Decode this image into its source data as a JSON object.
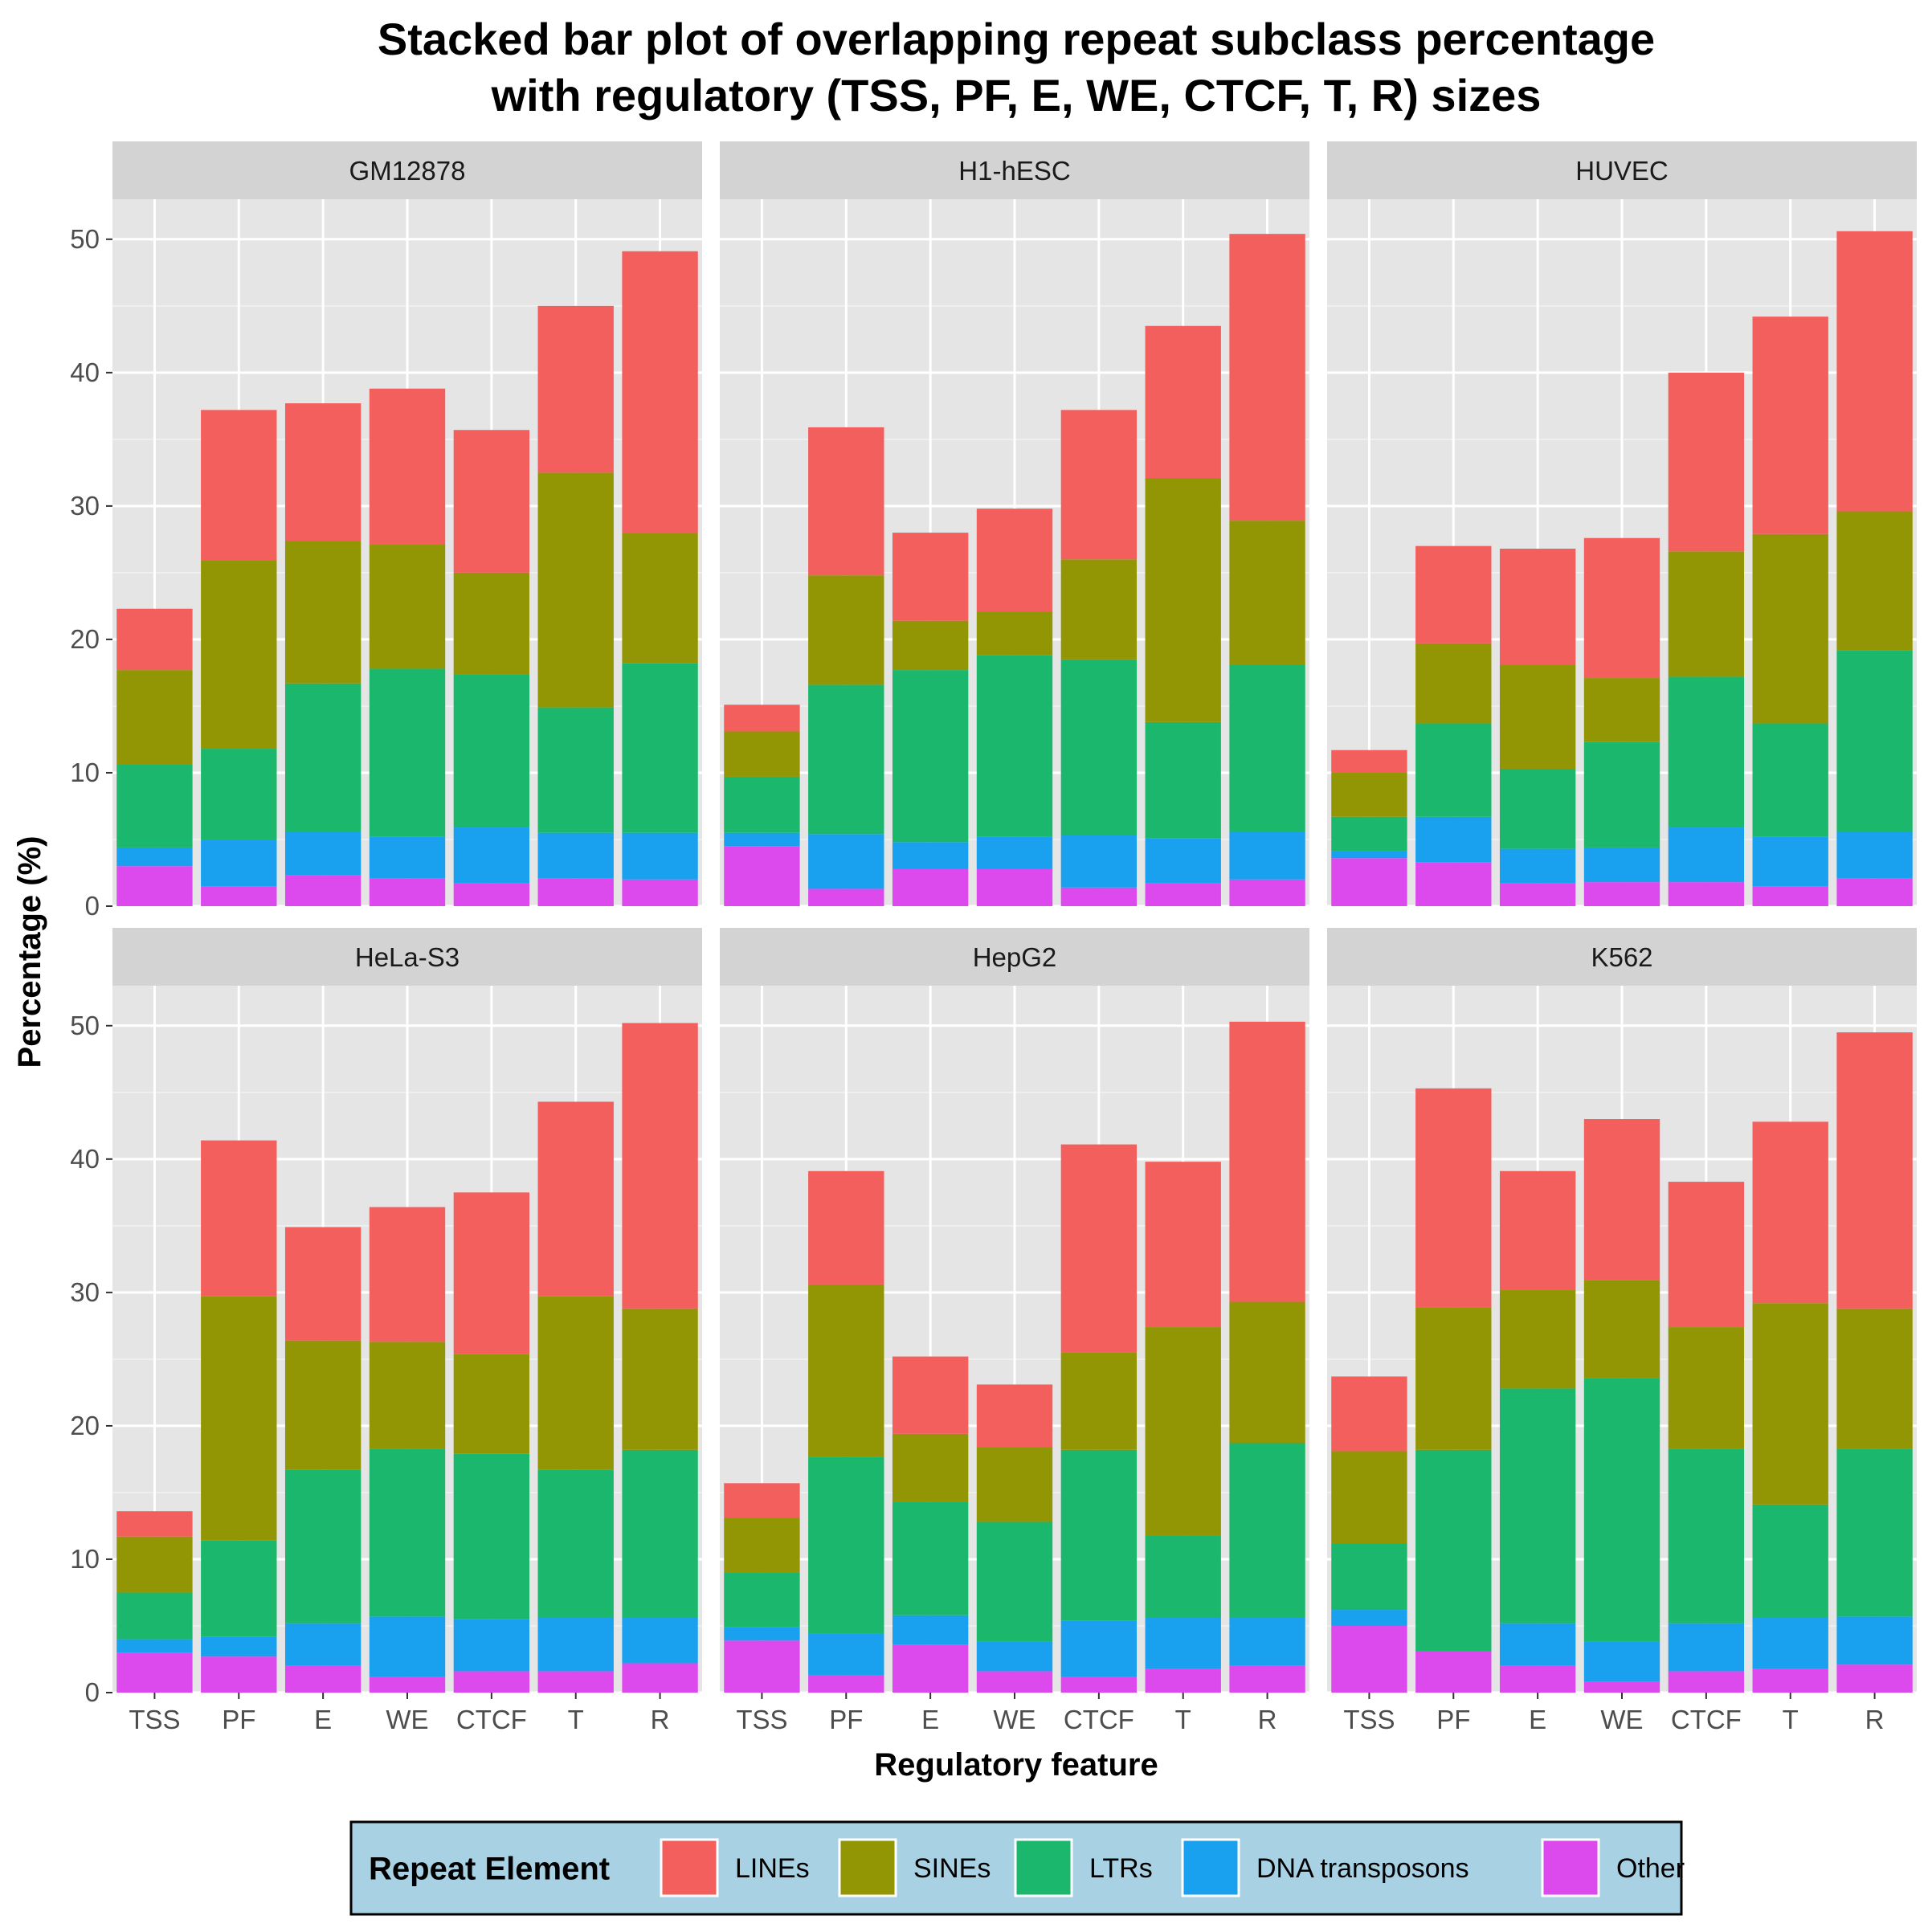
{
  "chart_data": {
    "type": "bar",
    "stacked": true,
    "title_lines": [
      "Stacked bar plot of overlapping repeat subclass percentage",
      "with regulatory (TSS, PF, E, WE, CTCF, T, R) sizes"
    ],
    "xlabel": "Regulatory feature",
    "ylabel": "Percentage (%)",
    "ylim": [
      0,
      53
    ],
    "yticks": [
      0,
      10,
      20,
      30,
      40,
      50
    ],
    "categories": [
      "TSS",
      "PF",
      "E",
      "WE",
      "CTCF",
      "T",
      "R"
    ],
    "stack_order": [
      "Other",
      "DNA transposons",
      "LTRs",
      "SINEs",
      "LINEs"
    ],
    "legend": {
      "title": "Repeat Element",
      "position": "bottom",
      "background": "#a9d1e4",
      "entries": [
        "LINEs",
        "SINEs",
        "LTRs",
        "DNA transposons",
        "Other"
      ]
    },
    "colors": {
      "LINEs": "#F25F5C",
      "SINEs": "#929605",
      "LTRs": "#1BB76C",
      "DNA transposons": "#19A1F0",
      "Other": "#DC4AEE"
    },
    "grid": true,
    "panel_background": "#E5E5E5",
    "strip_background": "#D3D3D3",
    "facets": [
      {
        "name": "GM12878",
        "series": [
          {
            "name": "Other",
            "values": [
              3.0,
              1.5,
              2.3,
              2.1,
              1.7,
              2.1,
              2.0
            ]
          },
          {
            "name": "DNA transposons",
            "values": [
              1.4,
              3.5,
              3.3,
              3.1,
              4.2,
              3.4,
              3.5
            ]
          },
          {
            "name": "LTRs",
            "values": [
              6.2,
              6.8,
              11.1,
              12.6,
              11.5,
              9.4,
              12.7
            ]
          },
          {
            "name": "SINEs",
            "values": [
              7.1,
              14.1,
              10.7,
              9.3,
              7.6,
              17.6,
              9.8
            ]
          },
          {
            "name": "LINEs",
            "values": [
              4.6,
              11.3,
              10.3,
              11.7,
              10.7,
              12.5,
              21.1
            ]
          }
        ]
      },
      {
        "name": "H1-hESC",
        "series": [
          {
            "name": "Other",
            "values": [
              4.5,
              1.3,
              2.8,
              2.8,
              1.4,
              1.7,
              2.0
            ]
          },
          {
            "name": "DNA transposons",
            "values": [
              1.0,
              4.1,
              2.0,
              2.4,
              3.9,
              3.4,
              3.6
            ]
          },
          {
            "name": "LTRs",
            "values": [
              4.2,
              11.2,
              12.9,
              13.6,
              13.2,
              8.7,
              12.5
            ]
          },
          {
            "name": "SINEs",
            "values": [
              3.4,
              8.2,
              3.7,
              3.3,
              7.5,
              18.3,
              10.8
            ]
          },
          {
            "name": "LINEs",
            "values": [
              2.0,
              11.1,
              6.6,
              7.7,
              11.2,
              11.4,
              21.5
            ]
          }
        ]
      },
      {
        "name": "HUVEC",
        "series": [
          {
            "name": "Other",
            "values": [
              3.6,
              3.3,
              1.7,
              1.8,
              1.8,
              1.5,
              2.1
            ]
          },
          {
            "name": "DNA transposons",
            "values": [
              0.5,
              3.4,
              2.6,
              2.6,
              4.1,
              3.7,
              3.5
            ]
          },
          {
            "name": "LTRs",
            "values": [
              2.6,
              7.0,
              6.0,
              7.9,
              11.3,
              8.5,
              13.6
            ]
          },
          {
            "name": "SINEs",
            "values": [
              3.3,
              6.0,
              7.8,
              4.8,
              9.4,
              14.2,
              10.4
            ]
          },
          {
            "name": "LINEs",
            "values": [
              1.7,
              7.3,
              8.7,
              10.5,
              13.4,
              16.3,
              21.0
            ]
          }
        ]
      },
      {
        "name": "HeLa-S3",
        "series": [
          {
            "name": "Other",
            "values": [
              3.0,
              2.7,
              2.0,
              1.2,
              1.6,
              1.6,
              2.2
            ]
          },
          {
            "name": "DNA transposons",
            "values": [
              1.0,
              1.5,
              3.2,
              4.5,
              3.9,
              4.0,
              3.4
            ]
          },
          {
            "name": "LTRs",
            "values": [
              3.5,
              7.2,
              11.5,
              12.6,
              12.4,
              11.1,
              12.6
            ]
          },
          {
            "name": "SINEs",
            "values": [
              4.2,
              18.3,
              9.7,
              8.0,
              7.5,
              13.0,
              10.6
            ]
          },
          {
            "name": "LINEs",
            "values": [
              1.9,
              11.7,
              8.5,
              10.1,
              12.1,
              14.6,
              21.4
            ]
          }
        ]
      },
      {
        "name": "HepG2",
        "series": [
          {
            "name": "Other",
            "values": [
              3.9,
              1.3,
              3.6,
              1.6,
              1.2,
              1.8,
              2.0
            ]
          },
          {
            "name": "DNA transposons",
            "values": [
              1.0,
              3.1,
              2.2,
              2.2,
              4.2,
              3.8,
              3.6
            ]
          },
          {
            "name": "LTRs",
            "values": [
              4.1,
              13.3,
              8.5,
              9.0,
              12.8,
              6.2,
              13.1
            ]
          },
          {
            "name": "SINEs",
            "values": [
              4.1,
              12.9,
              5.1,
              5.6,
              7.3,
              15.6,
              10.6
            ]
          },
          {
            "name": "LINEs",
            "values": [
              2.6,
              8.5,
              5.8,
              4.7,
              15.6,
              12.4,
              21.0
            ]
          }
        ]
      },
      {
        "name": "K562",
        "series": [
          {
            "name": "Other",
            "values": [
              5.0,
              3.1,
              2.0,
              0.8,
              1.6,
              1.8,
              2.1
            ]
          },
          {
            "name": "DNA transposons",
            "values": [
              1.2,
              0.0,
              3.2,
              3.0,
              3.6,
              3.8,
              3.6
            ]
          },
          {
            "name": "LTRs",
            "values": [
              5.0,
              15.1,
              17.6,
              19.8,
              13.1,
              8.5,
              12.6
            ]
          },
          {
            "name": "SINEs",
            "values": [
              6.9,
              10.7,
              7.4,
              7.3,
              9.1,
              15.1,
              10.5
            ]
          },
          {
            "name": "LINEs",
            "values": [
              5.6,
              16.4,
              8.9,
              12.1,
              10.9,
              13.6,
              20.7
            ]
          }
        ]
      }
    ]
  }
}
